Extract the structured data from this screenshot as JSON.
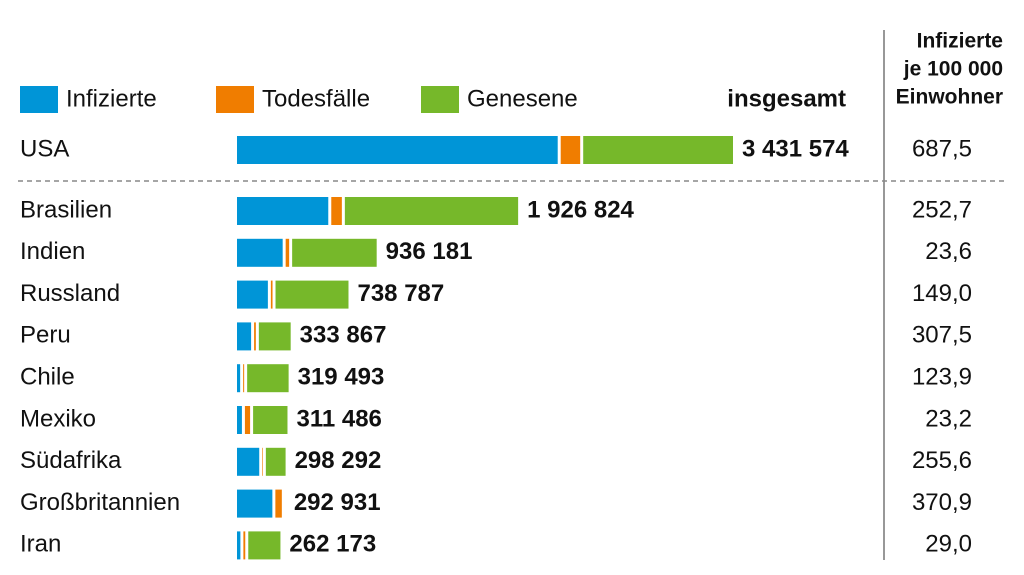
{
  "chart_data": {
    "type": "bar",
    "orientation": "horizontal",
    "stacked": true,
    "categories": [
      "USA",
      "Brasilien",
      "Indien",
      "Russland",
      "Peru",
      "Chile",
      "Mexiko",
      "Südafrika",
      "Großbritannien",
      "Iran"
    ],
    "series": [
      {
        "name": "Infizierte",
        "color": "#0095d7",
        "values": [
          2246010,
          639179,
          319840,
          216201,
          98702,
          22023,
          34405,
          155705,
          247658,
          23692
        ]
      },
      {
        "name": "Todesfälle",
        "color": "#f07d00",
        "values": [
          136466,
          74133,
          24309,
          11614,
          12229,
          7069,
          36327,
          4346,
          45273,
          13211
        ]
      },
      {
        "name": "Genesene",
        "color": "#76b82a",
        "values": [
          1049098,
          1213512,
          592032,
          510972,
          222936,
          290401,
          240754,
          138241,
          0,
          225270
        ]
      }
    ],
    "total_header": "insgesamt",
    "totals": [
      3431574,
      1926824,
      936181,
      738787,
      333867,
      319493,
      311486,
      298292,
      292931,
      262173
    ],
    "total_labels": [
      "3 431 574",
      "1 926 824",
      "936 181",
      "738 787",
      "333 867",
      "319 493",
      "311 486",
      "298 292",
      "292 931",
      "262 173"
    ],
    "rate_header": [
      "Infizierte",
      "je 100 000",
      "Einwohner"
    ],
    "rates": [
      687.5,
      252.7,
      23.6,
      149.0,
      307.5,
      123.9,
      23.2,
      255.6,
      370.9,
      29.0
    ],
    "rate_labels": [
      "687,5",
      "252,7",
      "23,6",
      "149,0",
      "307,5",
      "123,9",
      "23,2",
      "255,6",
      "370,9",
      "29,0"
    ]
  }
}
